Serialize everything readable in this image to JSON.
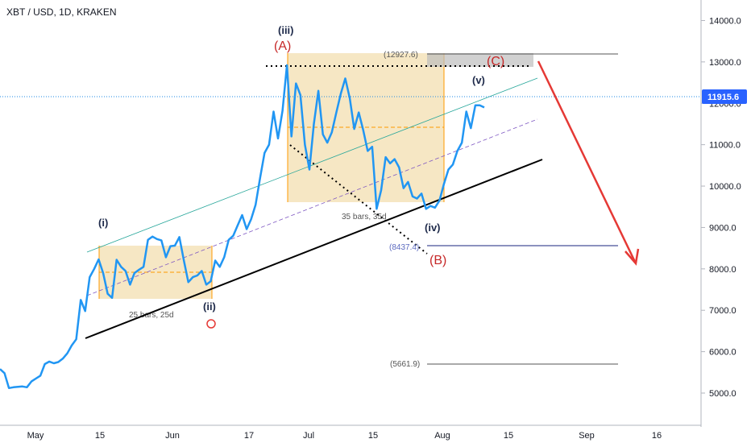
{
  "symbol": "XBT / USD, 1D, KRAKEN",
  "chart_data": {
    "type": "line",
    "title": "XBT / USD, 1D, KRAKEN",
    "x_tick_labels": [
      "May",
      "15",
      "Jun",
      "17",
      "Jul",
      "15",
      "Aug",
      "15",
      "Sep",
      "16"
    ],
    "y_tick_labels": [
      "5000.0",
      "6000.0",
      "7000.0",
      "8000.0",
      "9000.0",
      "10000.0",
      "11000.0",
      "12000.0",
      "13000.0",
      "14000.0"
    ],
    "ylim": [
      4800,
      14200
    ],
    "grid": false,
    "series": [
      {
        "values": [
          5580,
          5480,
          5120,
          5140,
          5150,
          5160,
          5140,
          5280,
          5350,
          5420,
          5700,
          5760,
          5720,
          5750,
          5830,
          5960,
          6150,
          6300,
          7250,
          6980,
          7800,
          8000,
          8230,
          7900,
          7400,
          7300,
          8220,
          8050,
          7950,
          7620,
          7900,
          7980,
          8050,
          8700,
          8780,
          8720,
          8690,
          8280,
          8550,
          8560,
          8770,
          8200,
          7680,
          7800,
          7840,
          7950,
          7620,
          7700,
          8200,
          8050,
          8280,
          8700,
          8800,
          9050,
          9300,
          8960,
          9200,
          9550,
          10200,
          10800,
          11000,
          11800,
          11150,
          11820,
          12920,
          11200,
          12480,
          12200,
          11000,
          10400,
          11500,
          12300,
          11250,
          11050,
          11300,
          11780,
          12230,
          12600,
          12120,
          11380,
          11780,
          11350,
          10850,
          10950,
          9450,
          9900,
          10700,
          10550,
          10650,
          10450,
          9950,
          10100,
          9750,
          9700,
          9820,
          9450,
          9520,
          9480,
          9650,
          10050,
          10400,
          10520,
          10850,
          11050,
          11800,
          11400,
          11950,
          11950,
          11900
        ]
      }
    ],
    "last_price": "11915.6",
    "wave_labels": [
      "(i)",
      "(ii)",
      "(iii)",
      "(iv)",
      "(v)"
    ],
    "correction_labels": [
      "(A)",
      "(B)",
      "(C)"
    ],
    "range_boxes": [
      {
        "label": "25 bars, 25d",
        "low": 7200,
        "high": 8450
      },
      {
        "label": "35 bars, 35d",
        "low": 9450,
        "high": 12950
      }
    ],
    "levels": [
      "(12927.6)",
      "(8437.4)",
      "(5661.9)"
    ],
    "colors": {
      "price_line": "#2196f3",
      "box_fill": "#f5deb3",
      "box_border": "#ff9800",
      "trend_channel_top": "#26a69a",
      "trend_channel_mid": "#7e57c2",
      "trend_channel_bottom": "#000000",
      "projection_arrow": "#e53935",
      "last_price_line": "#1e88e5",
      "last_price_badge": "#2962ff"
    }
  }
}
